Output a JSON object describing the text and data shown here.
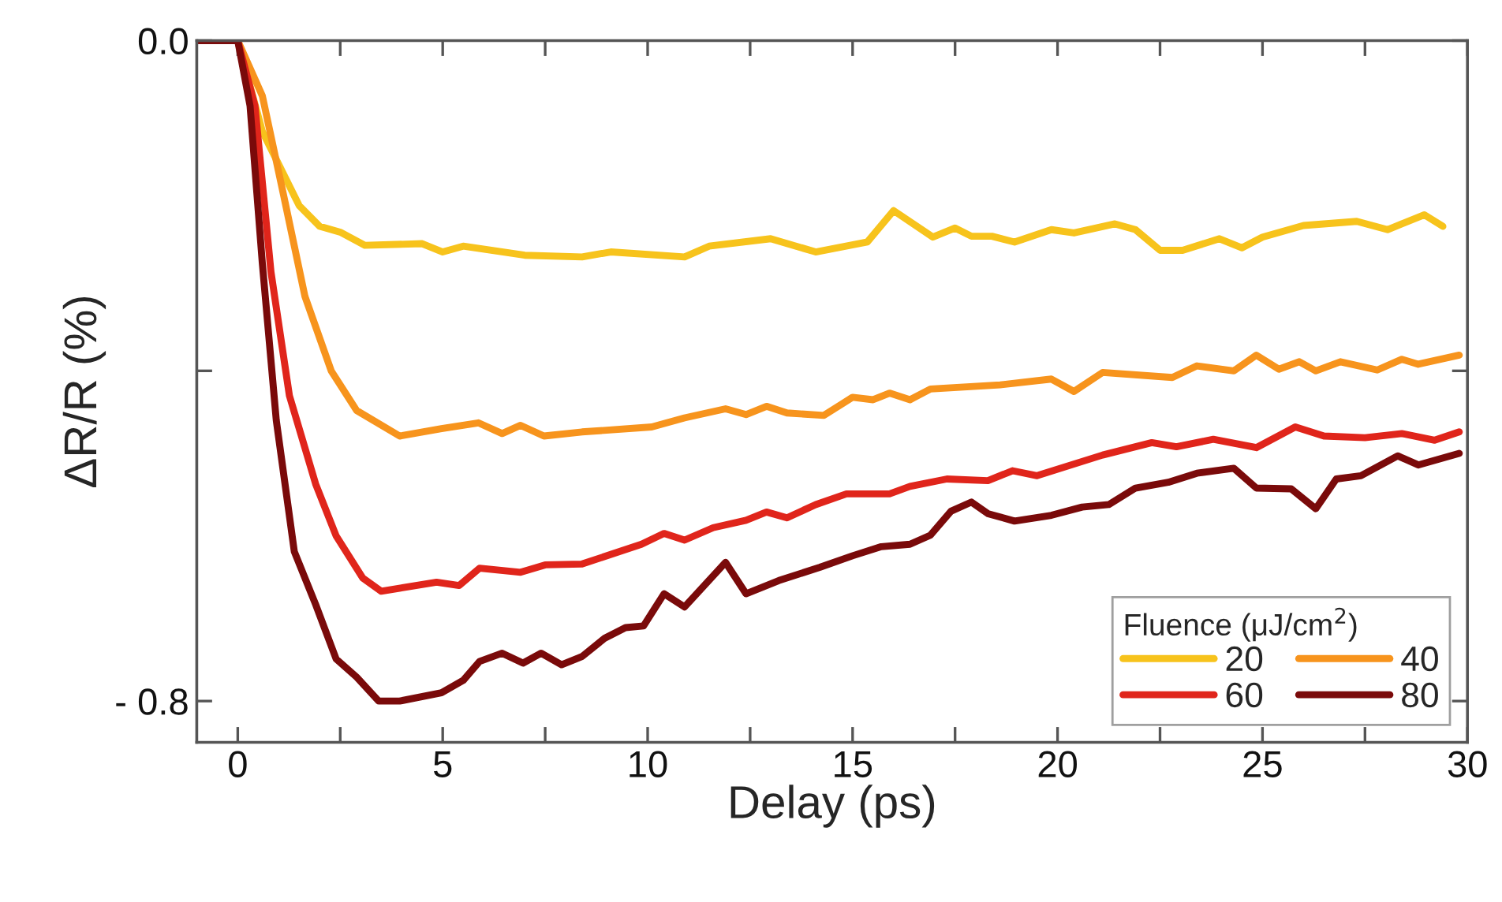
{
  "chart_data": {
    "type": "line",
    "xlabel": "Delay (ps)",
    "ylabel": "ΔR/R (%)",
    "legend_title": "Fluence (μJ/cm$^{2}$)",
    "xlim": [
      -1,
      30
    ],
    "ylim": [
      -0.85,
      0
    ],
    "xticks": [
      0,
      {
        "value": 2.5,
        "label": null
      },
      5,
      {
        "value": 7.5,
        "label": null
      },
      10,
      {
        "value": 12.5,
        "label": null
      },
      15,
      {
        "value": 17.5,
        "label": null
      },
      20,
      {
        "value": 22.5,
        "label": null
      },
      25,
      {
        "value": 27.5,
        "label": null
      },
      30
    ],
    "yticks": [
      {
        "value": 0,
        "label": "0.0"
      },
      {
        "value": -0.4,
        "label": null
      },
      {
        "value": -0.8,
        "label": "- 0.8"
      }
    ],
    "grid": false,
    "legend": "bottom right",
    "line_style": "solid",
    "series": [
      {
        "name": "20",
        "color": "#f7c31c",
        "x": [
          -1,
          0,
          0.6,
          1.5,
          2.0,
          2.5,
          3.1,
          4.5,
          5.0,
          5.5,
          7.0,
          8.4,
          9.1,
          10.9,
          11.5,
          13.0,
          14.1,
          15.36,
          16.0,
          16.96,
          17.5,
          17.9,
          18.4,
          18.95,
          19.85,
          20.4,
          21.4,
          21.9,
          22.5,
          23.05,
          23.95,
          24.5,
          25.0,
          26.0,
          27.3,
          28.05,
          28.4,
          28.95,
          29.4
        ],
        "values": [
          0,
          0,
          -0.11,
          -0.2,
          -0.225,
          -0.232,
          -0.248,
          -0.246,
          -0.256,
          -0.249,
          -0.26,
          -0.262,
          -0.256,
          -0.262,
          -0.249,
          -0.24,
          -0.256,
          -0.244,
          -0.206,
          -0.238,
          -0.227,
          -0.237,
          -0.237,
          -0.244,
          -0.229,
          -0.233,
          -0.222,
          -0.229,
          -0.254,
          -0.254,
          -0.24,
          -0.251,
          -0.238,
          -0.224,
          -0.219,
          -0.229,
          -0.222,
          -0.211,
          -0.225
        ]
      },
      {
        "name": "40",
        "color": "#f7941d",
        "x": [
          -1,
          0,
          0.6,
          1.13,
          1.64,
          2.28,
          2.9,
          3.95,
          4.97,
          5.87,
          6.45,
          6.9,
          7.47,
          8.4,
          10.1,
          10.9,
          11.9,
          12.4,
          12.9,
          13.4,
          14.3,
          15.0,
          15.5,
          15.9,
          16.4,
          16.9,
          18.6,
          19.85,
          20.4,
          21.1,
          22.8,
          23.4,
          24.3,
          24.85,
          25.4,
          25.9,
          26.3,
          26.9,
          27.8,
          28.4,
          28.8,
          29.8
        ],
        "values": [
          0,
          0,
          -0.067,
          -0.19,
          -0.31,
          -0.4,
          -0.448,
          -0.479,
          -0.47,
          -0.463,
          -0.476,
          -0.466,
          -0.479,
          -0.474,
          -0.468,
          -0.457,
          -0.446,
          -0.453,
          -0.443,
          -0.451,
          -0.454,
          -0.432,
          -0.435,
          -0.427,
          -0.435,
          -0.422,
          -0.417,
          -0.41,
          -0.425,
          -0.402,
          -0.408,
          -0.394,
          -0.4,
          -0.381,
          -0.398,
          -0.389,
          -0.4,
          -0.389,
          -0.399,
          -0.386,
          -0.392,
          -0.381
        ]
      },
      {
        "name": "60",
        "color": "#e0251b",
        "x": [
          -1,
          0,
          0.42,
          0.81,
          1.26,
          1.9,
          2.4,
          3.05,
          3.5,
          4.85,
          5.4,
          5.9,
          6.9,
          7.5,
          8.4,
          9.85,
          10.4,
          10.9,
          11.6,
          12.4,
          12.9,
          13.4,
          14.1,
          14.85,
          15.9,
          16.4,
          17.3,
          18.3,
          18.9,
          19.5,
          21.1,
          22.3,
          22.9,
          23.8,
          24.85,
          25.8,
          26.5,
          27.5,
          28.4,
          29.2,
          29.8
        ],
        "values": [
          0,
          0,
          -0.079,
          -0.28,
          -0.43,
          -0.537,
          -0.6,
          -0.651,
          -0.667,
          -0.656,
          -0.66,
          -0.639,
          -0.644,
          -0.635,
          -0.634,
          -0.61,
          -0.597,
          -0.605,
          -0.59,
          -0.581,
          -0.571,
          -0.578,
          -0.562,
          -0.549,
          -0.549,
          -0.54,
          -0.531,
          -0.533,
          -0.521,
          -0.527,
          -0.502,
          -0.487,
          -0.492,
          -0.483,
          -0.493,
          -0.468,
          -0.479,
          -0.481,
          -0.476,
          -0.484,
          -0.474
        ]
      },
      {
        "name": "80",
        "color": "#7a0a0a",
        "x": [
          -1,
          0,
          0.3,
          0.6,
          0.94,
          1.38,
          1.9,
          2.4,
          2.9,
          3.44,
          3.95,
          4.97,
          5.5,
          5.9,
          6.45,
          6.96,
          7.4,
          7.9,
          8.4,
          8.95,
          9.46,
          9.9,
          10.4,
          10.9,
          11.9,
          12.4,
          13.2,
          14.2,
          15.0,
          15.7,
          16.4,
          16.9,
          17.4,
          17.9,
          18.3,
          18.95,
          19.85,
          20.6,
          21.25,
          21.9,
          22.7,
          23.4,
          24.3,
          24.85,
          25.7,
          26.3,
          26.8,
          27.4,
          28.3,
          28.8,
          29.8
        ],
        "values": [
          0,
          0,
          -0.079,
          -0.27,
          -0.46,
          -0.619,
          -0.683,
          -0.749,
          -0.771,
          -0.8,
          -0.8,
          -0.79,
          -0.775,
          -0.752,
          -0.742,
          -0.754,
          -0.742,
          -0.756,
          -0.746,
          -0.724,
          -0.711,
          -0.709,
          -0.67,
          -0.686,
          -0.632,
          -0.67,
          -0.654,
          -0.638,
          -0.624,
          -0.613,
          -0.61,
          -0.599,
          -0.57,
          -0.559,
          -0.573,
          -0.582,
          -0.575,
          -0.565,
          -0.562,
          -0.542,
          -0.535,
          -0.524,
          -0.518,
          -0.542,
          -0.543,
          -0.567,
          -0.531,
          -0.527,
          -0.503,
          -0.514,
          -0.5
        ]
      }
    ]
  }
}
